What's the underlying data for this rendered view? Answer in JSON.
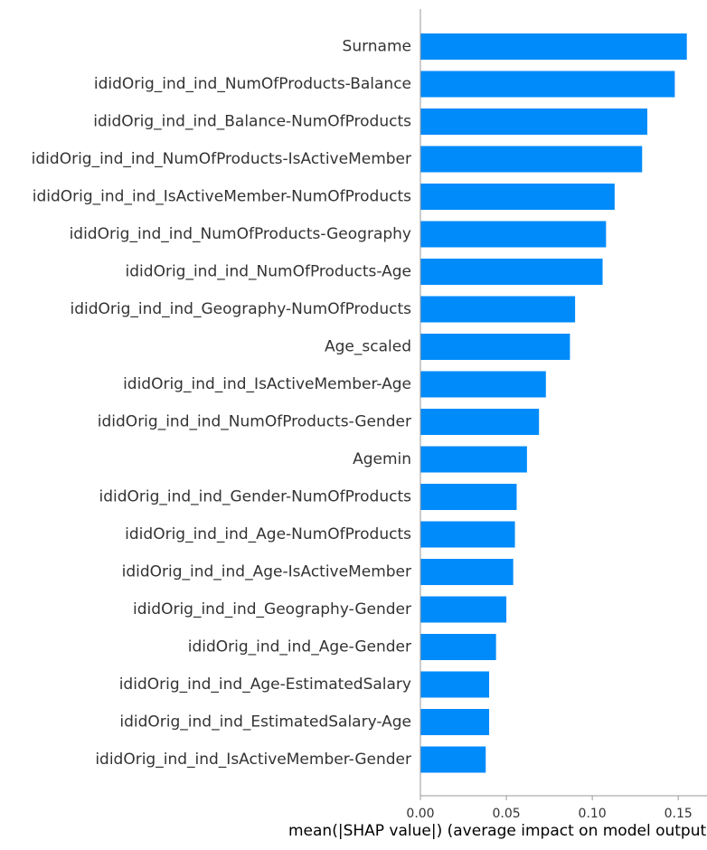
{
  "chart_data": {
    "type": "bar",
    "orientation": "horizontal",
    "categories": [
      "Surname",
      "ididOrig_ind_ind_NumOfProducts-Balance",
      "ididOrig_ind_ind_Balance-NumOfProducts",
      "ididOrig_ind_ind_NumOfProducts-IsActiveMember",
      "ididOrig_ind_ind_IsActiveMember-NumOfProducts",
      "ididOrig_ind_ind_NumOfProducts-Geography",
      "ididOrig_ind_ind_NumOfProducts-Age",
      "ididOrig_ind_ind_Geography-NumOfProducts",
      "Age_scaled",
      "ididOrig_ind_ind_IsActiveMember-Age",
      "ididOrig_ind_ind_NumOfProducts-Gender",
      "Agemin",
      "ididOrig_ind_ind_Gender-NumOfProducts",
      "ididOrig_ind_ind_Age-NumOfProducts",
      "ididOrig_ind_ind_Age-IsActiveMember",
      "ididOrig_ind_ind_Geography-Gender",
      "ididOrig_ind_ind_Age-Gender",
      "ididOrig_ind_ind_Age-EstimatedSalary",
      "ididOrig_ind_ind_EstimatedSalary-Age",
      "ididOrig_ind_ind_IsActiveMember-Gender"
    ],
    "values": [
      0.155,
      0.148,
      0.132,
      0.129,
      0.113,
      0.108,
      0.106,
      0.09,
      0.087,
      0.073,
      0.069,
      0.062,
      0.056,
      0.055,
      0.054,
      0.05,
      0.044,
      0.04,
      0.04,
      0.038
    ],
    "xlim": [
      0,
      0.162
    ],
    "xticks": [
      0.0,
      0.05,
      0.1,
      0.15
    ],
    "xtick_labels": [
      "0.00",
      "0.05",
      "0.10",
      "0.15"
    ],
    "xlabel": "mean(|SHAP value|) (average impact on model output magnitude)",
    "ylabel": "",
    "title": "",
    "grid": false,
    "bar_color": "#008bfb",
    "axis_color": "#999999"
  }
}
